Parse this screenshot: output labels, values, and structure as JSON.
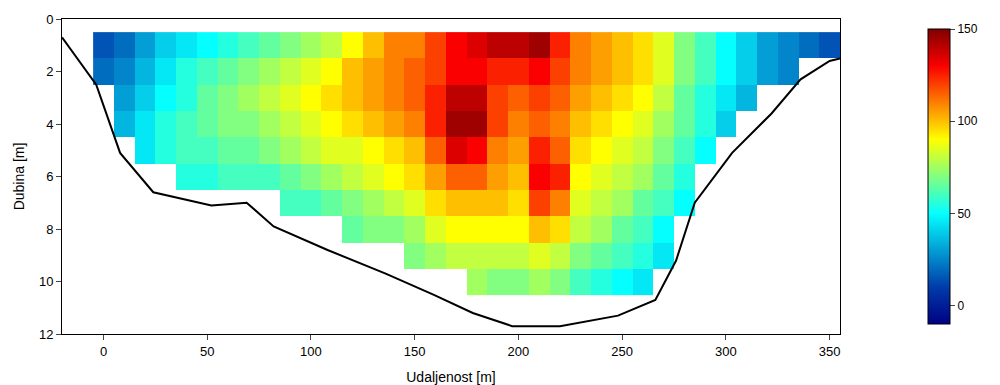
{
  "chart_data": {
    "type": "heatmap",
    "x_label": "Udaljenost [m]",
    "y_label": "Dubina [m]",
    "xlim": [
      -20,
      355
    ],
    "xticks": [
      0,
      50,
      100,
      150,
      200,
      250,
      300,
      350
    ],
    "ylim": [
      12,
      0
    ],
    "yticks": [
      0,
      2,
      4,
      6,
      8,
      10,
      12
    ],
    "x": [
      0,
      10,
      20,
      30,
      40,
      50,
      60,
      70,
      80,
      90,
      100,
      110,
      120,
      130,
      140,
      150,
      160,
      170,
      180,
      190,
      200,
      210,
      220,
      230,
      240,
      250,
      260,
      270,
      280,
      290,
      300,
      310,
      320,
      330,
      340,
      350
    ],
    "y": [
      1,
      2,
      3,
      4,
      5,
      6,
      7,
      8,
      9,
      10
    ],
    "z": [
      [
        15,
        20,
        30,
        40,
        45,
        50,
        55,
        60,
        65,
        70,
        75,
        80,
        90,
        100,
        110,
        110,
        120,
        130,
        135,
        140,
        140,
        145,
        125,
        110,
        105,
        100,
        95,
        85,
        70,
        60,
        50,
        40,
        30,
        25,
        20,
        15
      ],
      [
        20,
        25,
        35,
        45,
        55,
        60,
        65,
        70,
        75,
        80,
        85,
        90,
        100,
        105,
        110,
        115,
        120,
        130,
        130,
        125,
        125,
        130,
        120,
        110,
        105,
        100,
        95,
        85,
        70,
        60,
        50,
        40,
        30,
        25,
        null,
        null
      ],
      [
        null,
        30,
        40,
        50,
        55,
        65,
        70,
        75,
        80,
        85,
        90,
        95,
        100,
        105,
        110,
        115,
        125,
        140,
        140,
        120,
        115,
        120,
        115,
        105,
        100,
        95,
        90,
        80,
        65,
        55,
        45,
        35,
        null,
        null,
        null,
        null
      ],
      [
        null,
        35,
        45,
        55,
        60,
        65,
        70,
        70,
        75,
        80,
        85,
        90,
        95,
        100,
        105,
        110,
        125,
        145,
        145,
        120,
        110,
        115,
        110,
        100,
        95,
        90,
        85,
        75,
        65,
        55,
        40,
        null,
        null,
        null,
        null,
        null
      ],
      [
        null,
        null,
        45,
        55,
        60,
        60,
        65,
        65,
        70,
        75,
        80,
        85,
        85,
        90,
        95,
        100,
        115,
        135,
        130,
        110,
        105,
        125,
        115,
        95,
        90,
        85,
        80,
        70,
        60,
        50,
        null,
        null,
        null,
        null,
        null,
        null
      ],
      [
        null,
        null,
        null,
        null,
        55,
        55,
        60,
        60,
        60,
        65,
        70,
        75,
        80,
        85,
        90,
        95,
        105,
        115,
        115,
        105,
        100,
        130,
        125,
        90,
        85,
        80,
        75,
        65,
        55,
        null,
        null,
        null,
        null,
        null,
        null,
        null
      ],
      [
        null,
        null,
        null,
        null,
        null,
        null,
        null,
        null,
        null,
        60,
        60,
        65,
        70,
        75,
        80,
        85,
        95,
        100,
        100,
        100,
        95,
        120,
        110,
        85,
        80,
        75,
        65,
        60,
        50,
        null,
        null,
        null,
        null,
        null,
        null,
        null
      ],
      [
        null,
        null,
        null,
        null,
        null,
        null,
        null,
        null,
        null,
        null,
        null,
        null,
        65,
        70,
        70,
        75,
        85,
        90,
        90,
        90,
        90,
        100,
        95,
        80,
        75,
        65,
        60,
        50,
        null,
        null,
        null,
        null,
        null,
        null,
        null,
        null
      ],
      [
        null,
        null,
        null,
        null,
        null,
        null,
        null,
        null,
        null,
        null,
        null,
        null,
        null,
        null,
        null,
        70,
        75,
        80,
        80,
        80,
        80,
        85,
        80,
        70,
        65,
        60,
        55,
        45,
        null,
        null,
        null,
        null,
        null,
        null,
        null,
        null
      ],
      [
        null,
        null,
        null,
        null,
        null,
        null,
        null,
        null,
        null,
        null,
        null,
        null,
        null,
        null,
        null,
        null,
        null,
        null,
        75,
        70,
        70,
        75,
        70,
        60,
        55,
        50,
        45,
        null,
        null,
        null,
        null,
        null,
        null,
        null,
        null,
        null
      ]
    ],
    "zlim": [
      -10,
      150
    ],
    "zticks": [
      0,
      50,
      100,
      150
    ],
    "bed_profile": {
      "x": [
        -20,
        -3.5,
        8,
        24,
        52,
        69,
        82,
        108,
        136,
        159,
        178,
        197,
        220,
        248,
        266,
        276,
        285,
        303,
        322,
        336,
        350,
        355
      ],
      "y": [
        0.7,
        2.5,
        5.1,
        6.6,
        7.1,
        7.0,
        7.9,
        8.8,
        9.7,
        10.5,
        11.2,
        11.7,
        11.7,
        11.3,
        10.7,
        9.2,
        7.0,
        5.1,
        3.6,
        2.3,
        1.6,
        1.5
      ],
      "color": "#000000"
    }
  }
}
